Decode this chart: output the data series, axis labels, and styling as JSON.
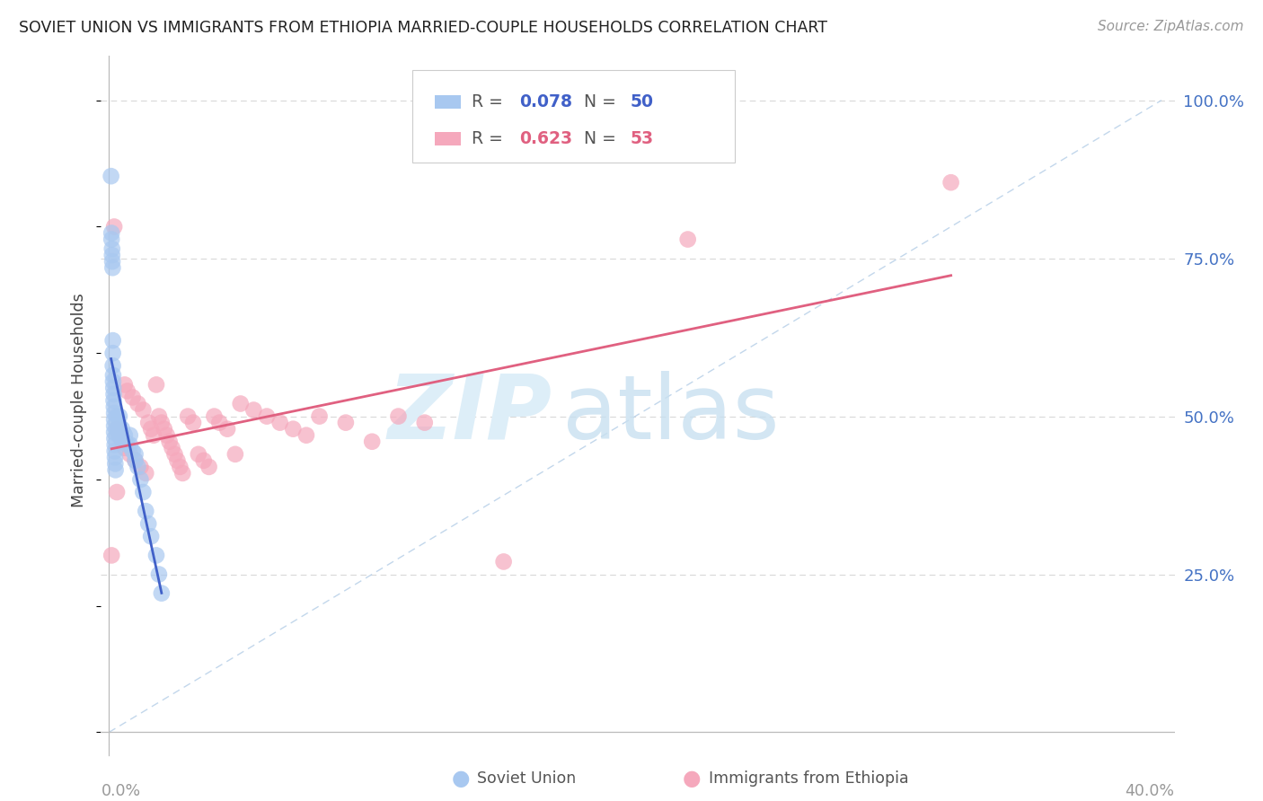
{
  "title": "SOVIET UNION VS IMMIGRANTS FROM ETHIOPIA MARRIED-COUPLE HOUSEHOLDS CORRELATION CHART",
  "source": "Source: ZipAtlas.com",
  "ylabel": "Married-couple Households",
  "legend1_R": "0.078",
  "legend1_N": "50",
  "legend2_R": "0.623",
  "legend2_N": "53",
  "soviet_color": "#A8C8F0",
  "ethiopia_color": "#F5A8BC",
  "soviet_line_color": "#4060C8",
  "ethiopia_line_color": "#E06080",
  "diagonal_color": "#B8D0E8",
  "bg_color": "#FFFFFF",
  "grid_color": "#D8D8D8",
  "axis_color": "#BBBBBB",
  "right_tick_color": "#4472C4",
  "title_color": "#222222",
  "source_color": "#999999",
  "bottom_label_color": "#999999",
  "xlim_min": 0.0,
  "xlim_max": 0.4,
  "ylim_min": 0.0,
  "ylim_max": 1.05,
  "yticks": [
    0.25,
    0.5,
    0.75,
    1.0
  ],
  "ytick_labels": [
    "25.0%",
    "50.0%",
    "75.0%",
    "100.0%"
  ],
  "xtick_labels_show": [
    "0.0%",
    "40.0%"
  ],
  "soviet_x": [
    0.0008,
    0.001,
    0.001,
    0.0012,
    0.0012,
    0.0013,
    0.0014,
    0.0015,
    0.0015,
    0.0015,
    0.0016,
    0.0016,
    0.0017,
    0.0018,
    0.0018,
    0.0019,
    0.002,
    0.002,
    0.002,
    0.002,
    0.0021,
    0.0022,
    0.0022,
    0.0023,
    0.0024,
    0.0025,
    0.003,
    0.003,
    0.0035,
    0.004,
    0.004,
    0.005,
    0.005,
    0.006,
    0.006,
    0.007,
    0.008,
    0.008,
    0.009,
    0.01,
    0.01,
    0.011,
    0.012,
    0.013,
    0.014,
    0.015,
    0.016,
    0.018,
    0.019,
    0.02
  ],
  "soviet_y": [
    0.88,
    0.79,
    0.78,
    0.765,
    0.755,
    0.745,
    0.735,
    0.62,
    0.6,
    0.58,
    0.565,
    0.555,
    0.545,
    0.535,
    0.525,
    0.515,
    0.505,
    0.495,
    0.485,
    0.475,
    0.465,
    0.455,
    0.445,
    0.435,
    0.425,
    0.415,
    0.5,
    0.48,
    0.47,
    0.5,
    0.485,
    0.48,
    0.465,
    0.46,
    0.47,
    0.455,
    0.47,
    0.455,
    0.445,
    0.44,
    0.43,
    0.42,
    0.4,
    0.38,
    0.35,
    0.33,
    0.31,
    0.28,
    0.25,
    0.22
  ],
  "ethiopia_x": [
    0.001,
    0.002,
    0.003,
    0.003,
    0.004,
    0.005,
    0.006,
    0.006,
    0.007,
    0.008,
    0.009,
    0.01,
    0.011,
    0.012,
    0.013,
    0.014,
    0.015,
    0.016,
    0.017,
    0.018,
    0.019,
    0.02,
    0.021,
    0.022,
    0.023,
    0.024,
    0.025,
    0.026,
    0.027,
    0.028,
    0.03,
    0.032,
    0.034,
    0.036,
    0.038,
    0.04,
    0.042,
    0.045,
    0.048,
    0.05,
    0.055,
    0.06,
    0.065,
    0.07,
    0.075,
    0.08,
    0.09,
    0.1,
    0.11,
    0.12,
    0.15,
    0.22,
    0.32
  ],
  "ethiopia_y": [
    0.28,
    0.8,
    0.48,
    0.38,
    0.47,
    0.46,
    0.55,
    0.45,
    0.54,
    0.44,
    0.53,
    0.43,
    0.52,
    0.42,
    0.51,
    0.41,
    0.49,
    0.48,
    0.47,
    0.55,
    0.5,
    0.49,
    0.48,
    0.47,
    0.46,
    0.45,
    0.44,
    0.43,
    0.42,
    0.41,
    0.5,
    0.49,
    0.44,
    0.43,
    0.42,
    0.5,
    0.49,
    0.48,
    0.44,
    0.52,
    0.51,
    0.5,
    0.49,
    0.48,
    0.47,
    0.5,
    0.49,
    0.46,
    0.5,
    0.49,
    0.27,
    0.78,
    0.87
  ]
}
